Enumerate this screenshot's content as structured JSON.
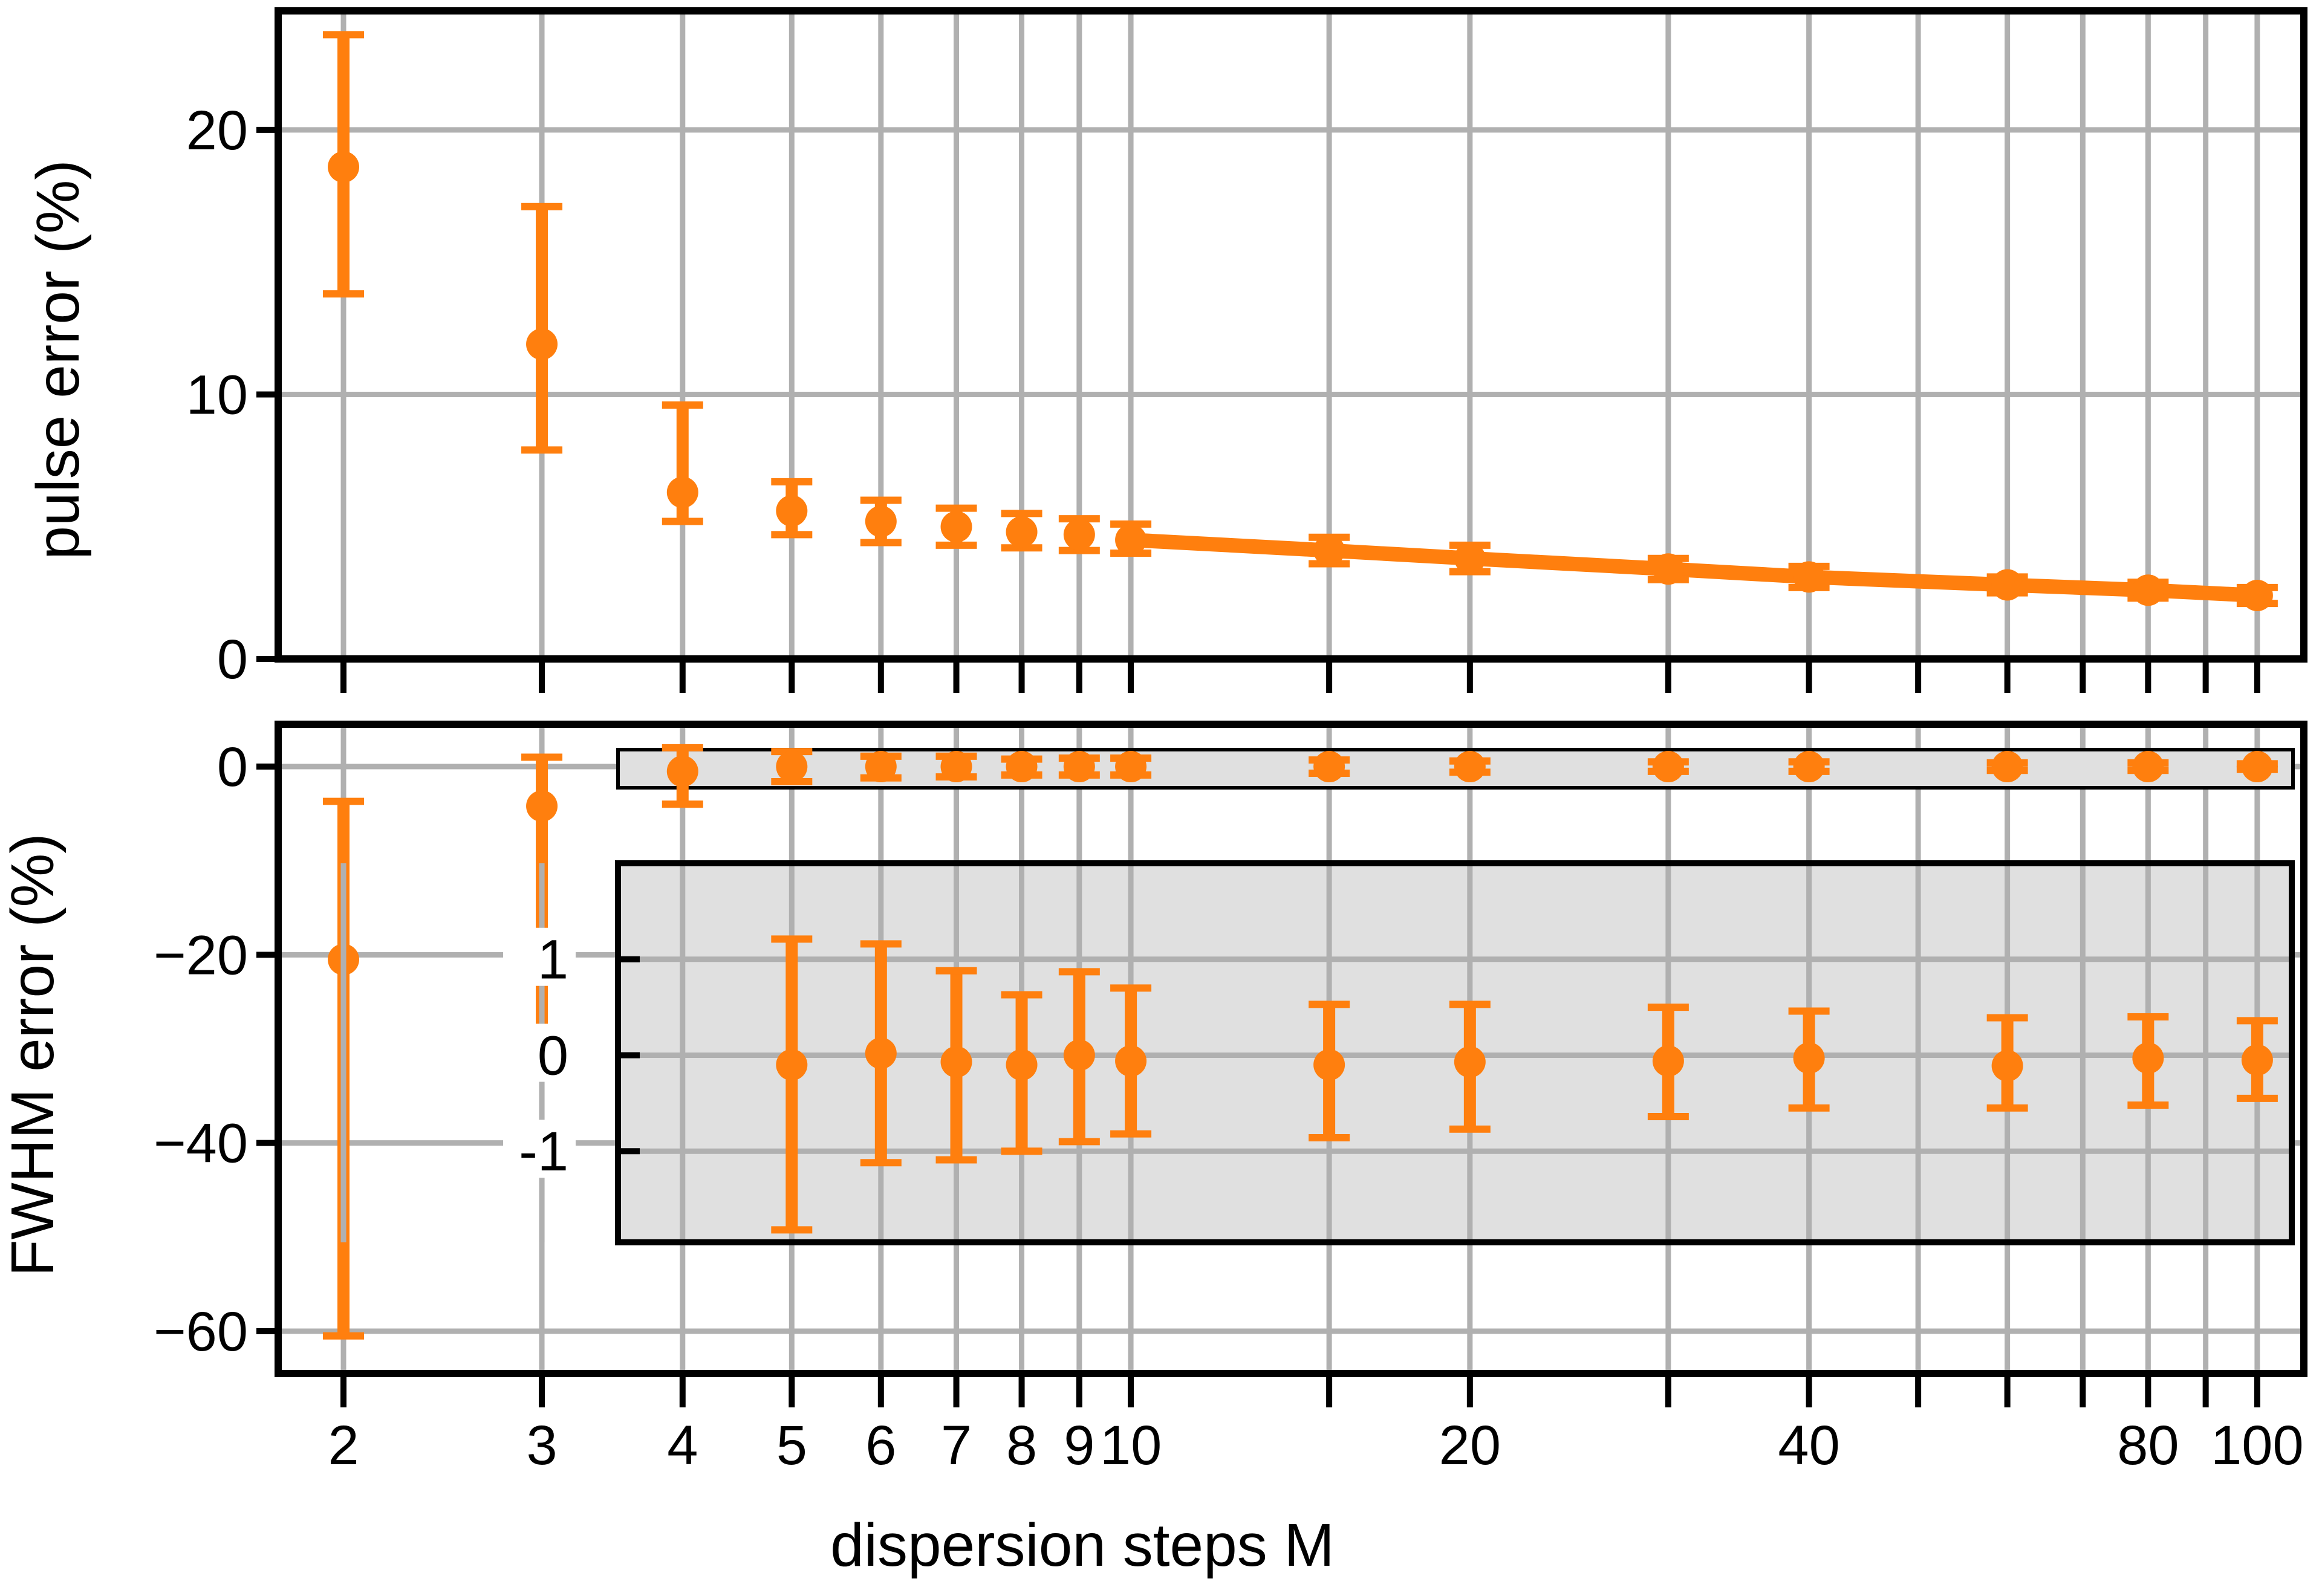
{
  "colors": {
    "series": "#ff7f0e",
    "grid": "#b0b0b0",
    "axis": "#000000",
    "inset_bg": "#e0e0e0"
  },
  "xlabel": "dispersion steps M",
  "x_ticks": [
    2,
    3,
    4,
    5,
    6,
    7,
    8,
    9,
    10,
    20,
    40,
    80,
    100
  ],
  "x_tick_labels": [
    "2",
    "3",
    "4",
    "5",
    "6",
    "7",
    "8",
    "9",
    "10",
    "20",
    "40",
    "80",
    "100"
  ],
  "x_minor_ticks": [
    15,
    30,
    50,
    60,
    70,
    90
  ],
  "chart_data": [
    {
      "type": "scatter",
      "panel": "top",
      "xscale": "log",
      "ylabel": "pulse error (%)",
      "xlim": [
        1.75,
        110
      ],
      "ylim": [
        0,
        24.5
      ],
      "yticks": [
        0,
        10,
        20
      ],
      "grid": true,
      "series": [
        {
          "x": [
            2,
            3,
            4,
            5,
            6,
            7,
            8,
            9,
            10,
            15,
            20,
            30,
            40,
            60,
            80,
            100
          ],
          "y": [
            18.6,
            11.9,
            6.3,
            5.6,
            5.2,
            5.0,
            4.8,
            4.7,
            4.5,
            4.1,
            3.8,
            3.4,
            3.1,
            2.8,
            2.6,
            2.4
          ],
          "err_low": [
            4.8,
            4.0,
            1.1,
            0.9,
            0.8,
            0.7,
            0.6,
            0.6,
            0.5,
            0.5,
            0.5,
            0.4,
            0.4,
            0.3,
            0.3,
            0.3
          ],
          "err_high": [
            5.0,
            5.2,
            3.3,
            1.1,
            0.8,
            0.7,
            0.7,
            0.6,
            0.6,
            0.5,
            0.5,
            0.4,
            0.4,
            0.3,
            0.3,
            0.3
          ],
          "connected_from_x": 10
        }
      ]
    },
    {
      "type": "scatter",
      "panel": "bottom",
      "xscale": "log",
      "ylabel": "FWHM error (%)",
      "xlim": [
        1.75,
        110
      ],
      "ylim": [
        -64.5,
        4.5
      ],
      "yticks": [
        0,
        -20,
        -40,
        -60
      ],
      "ytick_labels": [
        "0",
        "−20",
        "−40",
        "−60"
      ],
      "grid": true,
      "series": [
        {
          "x": [
            2,
            3,
            4,
            5,
            6,
            7,
            8,
            9,
            10,
            15,
            20,
            30,
            40,
            60,
            80,
            100
          ],
          "y": [
            -20.5,
            -4.2,
            -0.5,
            0,
            0,
            0,
            0,
            0,
            0,
            0,
            0,
            0,
            0,
            0,
            0,
            0
          ],
          "err_low": [
            40.0,
            24.0,
            3.5,
            1.6,
            1.2,
            1.1,
            0.9,
            0.9,
            0.9,
            0.7,
            0.6,
            0.5,
            0.5,
            0.4,
            0.4,
            0.3
          ],
          "err_high": [
            16.8,
            5.2,
            2.5,
            1.6,
            1.1,
            1.1,
            0.8,
            0.9,
            0.9,
            0.7,
            0.6,
            0.5,
            0.5,
            0.4,
            0.4,
            0.3
          ]
        }
      ]
    },
    {
      "type": "scatter",
      "panel": "inset",
      "xscale": "log",
      "ylim": [
        -1.95,
        2.0
      ],
      "yticks": [
        1,
        0,
        -1
      ],
      "ytick_labels": [
        "1",
        "0",
        "-1"
      ],
      "grid": true,
      "series": [
        {
          "x": [
            5,
            6,
            7,
            8,
            9,
            10,
            15,
            20,
            30,
            40,
            60,
            80,
            100
          ],
          "y": [
            -0.1,
            0.02,
            -0.07,
            -0.1,
            0.0,
            -0.06,
            -0.1,
            -0.07,
            -0.06,
            -0.03,
            -0.11,
            -0.03,
            -0.05
          ],
          "err_low": [
            1.72,
            1.14,
            1.02,
            0.9,
            0.9,
            0.76,
            0.76,
            0.7,
            0.58,
            0.52,
            0.44,
            0.49,
            0.4
          ],
          "err_high": [
            1.31,
            1.14,
            0.95,
            0.73,
            0.87,
            0.76,
            0.63,
            0.6,
            0.56,
            0.49,
            0.5,
            0.43,
            0.41
          ]
        }
      ]
    }
  ]
}
